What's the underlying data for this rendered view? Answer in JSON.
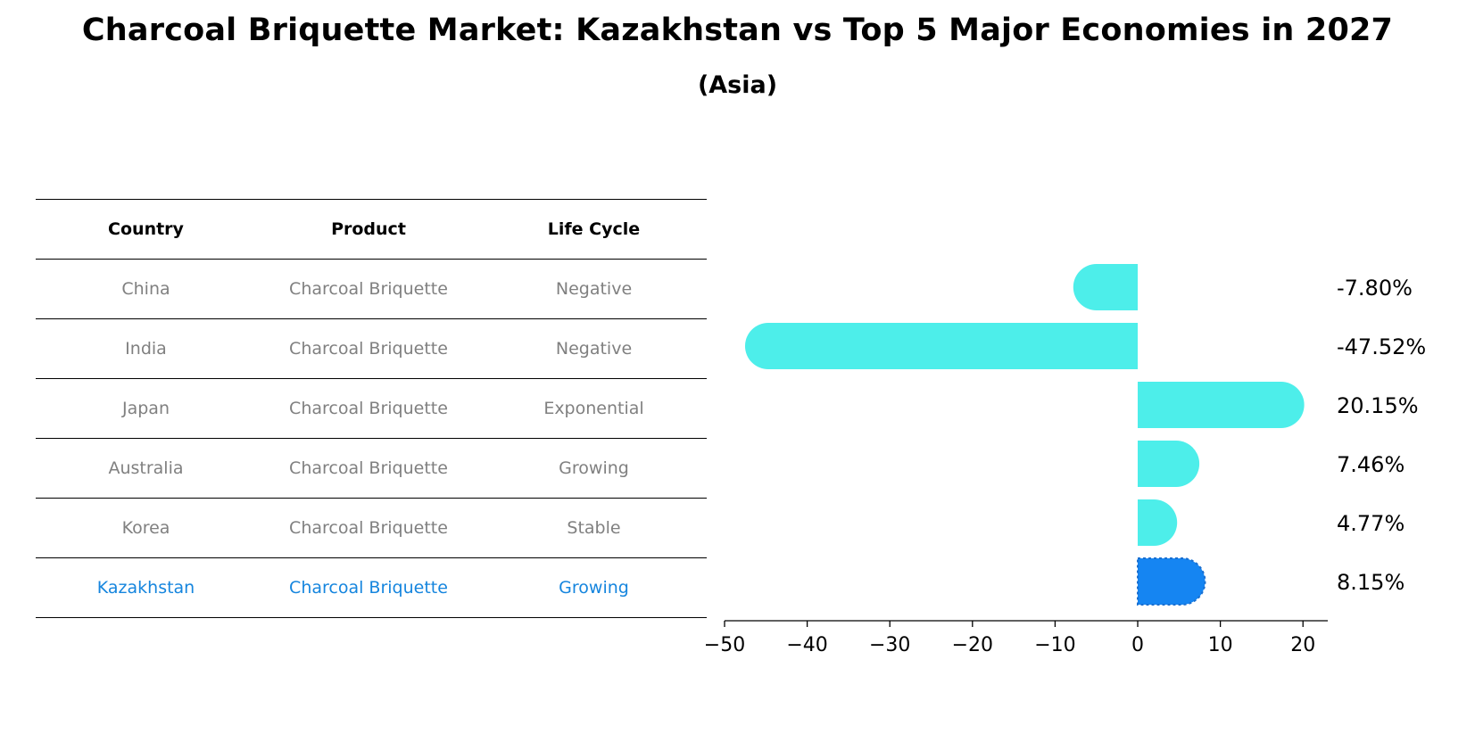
{
  "title": "Charcoal Briquette Market: Kazakhstan vs Top 5 Major Economies in 2027",
  "subtitle": "(Asia)",
  "table": {
    "headers": [
      "Country",
      "Product",
      "Life Cycle"
    ],
    "rows": [
      [
        "China",
        "Charcoal Briquette",
        "Negative"
      ],
      [
        "India",
        "Charcoal Briquette",
        "Negative"
      ],
      [
        "Japan",
        "Charcoal Briquette",
        "Exponential"
      ],
      [
        "Australia",
        "Charcoal Briquette",
        "Growing"
      ],
      [
        "Korea",
        "Charcoal Briquette",
        "Stable"
      ],
      [
        "Kazakhstan",
        "Charcoal Briquette",
        "Growing"
      ]
    ]
  },
  "chart_data": {
    "type": "bar",
    "orientation": "horizontal",
    "categories": [
      "China",
      "India",
      "Japan",
      "Australia",
      "Korea",
      "Kazakhstan"
    ],
    "values": [
      -7.8,
      -47.52,
      20.15,
      7.46,
      4.77,
      8.15
    ],
    "value_labels": [
      "-7.80%",
      "-47.52%",
      "20.15%",
      "7.46%",
      "4.77%",
      "8.15%"
    ],
    "xlim": [
      -50,
      23
    ],
    "xticks": [
      -50,
      -40,
      -30,
      -20,
      -10,
      0,
      10,
      20
    ],
    "xtick_labels": [
      "−50",
      "−40",
      "−30",
      "−20",
      "−10",
      "0",
      "10",
      "20"
    ],
    "colors": {
      "default": "#4deeea",
      "highlight": "#1585f2"
    },
    "highlight": "Kazakhstan",
    "grid": false
  }
}
